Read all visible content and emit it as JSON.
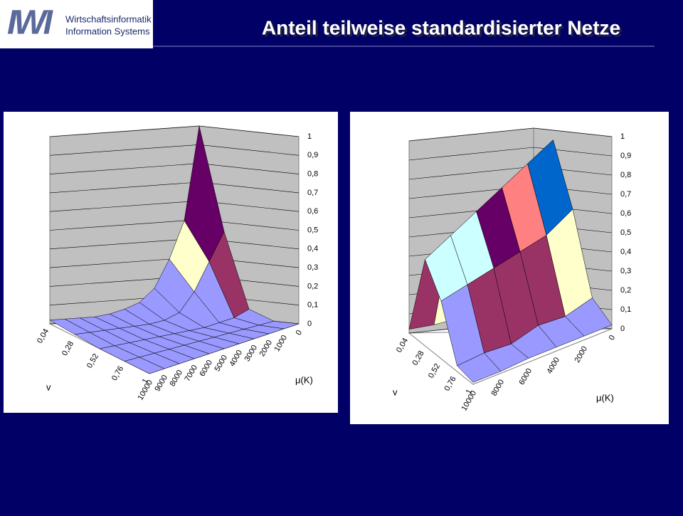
{
  "header": {
    "logo": "IWI",
    "logo_line1": "Wirtschaftsinformatik",
    "logo_line2": "Information Systems",
    "title": "Anteil teilweise standardisierter Netze"
  },
  "chart_data": [
    {
      "type": "surface",
      "x_label": "v",
      "y_label": "μ(K)",
      "categories": [
        "0,04",
        "0,28",
        "0,52",
        "0,76",
        "1"
      ],
      "y_categories": [
        "0",
        "1000",
        "2000",
        "3000",
        "4000",
        "5000",
        "6000",
        "7000",
        "8000",
        "9000",
        "10000"
      ],
      "values": [
        [
          1.0,
          0.5,
          0.3,
          0.15,
          0.08,
          0.05,
          0.03,
          0.02,
          0.02,
          0.02,
          0.02
        ],
        [
          0.45,
          0.3,
          0.15,
          0.05,
          0.02,
          0.01,
          0.01,
          0.01,
          0.01,
          0.01,
          0.01
        ],
        [
          0.05,
          0.02,
          0.01,
          0,
          0,
          0,
          0,
          0,
          0,
          0,
          0
        ],
        [
          0,
          0,
          0,
          0,
          0,
          0,
          0,
          0,
          0,
          0,
          0
        ],
        [
          0,
          0,
          0,
          0,
          0,
          0,
          0,
          0,
          0,
          0,
          0
        ]
      ],
      "zlim": [
        0,
        1
      ],
      "zticks": [
        0,
        {
          "value": 0.1,
          "label": "0,1"
        },
        {
          "value": 0.2,
          "label": "0,2"
        },
        {
          "value": 0.3,
          "label": "0,3"
        },
        {
          "value": 0.4,
          "label": "0,4"
        },
        {
          "value": 0.5,
          "label": "0,5"
        },
        {
          "value": 0.6,
          "label": "0,6"
        },
        {
          "value": 0.7,
          "label": "0,7"
        },
        {
          "value": 0.8,
          "label": "0,8"
        },
        {
          "value": 0.9,
          "label": "0,9"
        },
        1
      ],
      "band_colors": [
        "#9999ff",
        "#9999ff",
        "#993366",
        "#ffffcc",
        "#ccffff",
        "#660066",
        "#ff8080",
        "#0066cc",
        "#ccccff",
        "#000080",
        "#ff00ff"
      ],
      "grid": true
    },
    {
      "type": "surface",
      "x_label": "v",
      "y_label": "μ(K)",
      "categories": [
        "0,04",
        "0,28",
        "0,52",
        "0,76",
        "1"
      ],
      "y_categories": [
        "0",
        "2000",
        "4000",
        "6000",
        "8000",
        "10000"
      ],
      "values": [
        [
          0.05,
          0.05,
          0.05,
          0.05,
          0.03,
          0.02
        ],
        [
          0.95,
          0.85,
          0.75,
          0.65,
          0.55,
          0.45
        ],
        [
          0.6,
          0.5,
          0.45,
          0.4,
          0.35,
          0.3
        ],
        [
          0.15,
          0.1,
          0.1,
          0.05,
          0.05,
          0.03
        ],
        [
          0.02,
          0.02,
          0.02,
          0.02,
          0.01,
          0.01
        ]
      ],
      "zlim": [
        0,
        1
      ],
      "zticks": [
        0,
        {
          "value": 0.1,
          "label": "0,1"
        },
        {
          "value": 0.2,
          "label": "0,2"
        },
        {
          "value": 0.3,
          "label": "0,3"
        },
        {
          "value": 0.4,
          "label": "0,4"
        },
        {
          "value": 0.5,
          "label": "0,5"
        },
        {
          "value": 0.6,
          "label": "0,6"
        },
        {
          "value": 0.7,
          "label": "0,7"
        },
        {
          "value": 0.8,
          "label": "0,8"
        },
        {
          "value": 0.9,
          "label": "0,9"
        },
        1
      ],
      "band_colors": [
        "#9999ff",
        "#9999ff",
        "#993366",
        "#ffffcc",
        "#ccffff",
        "#660066",
        "#ff8080",
        "#0066cc",
        "#ccccff",
        "#000080",
        "#ff00ff"
      ],
      "grid": true
    }
  ]
}
